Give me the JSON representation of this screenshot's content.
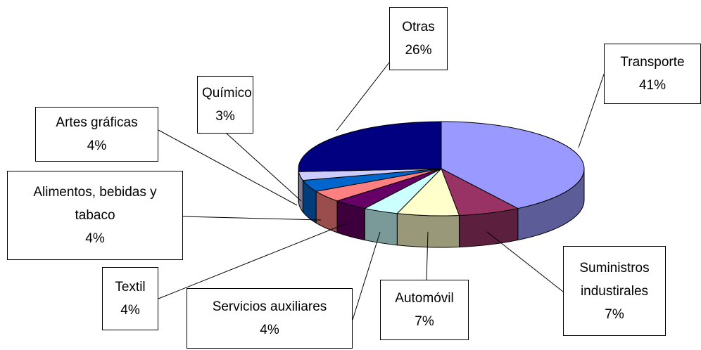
{
  "chart_data": {
    "type": "pie3d",
    "categories": [
      "Transporte",
      "Suministros industirales",
      "Automóvil",
      "Servicios auxiliares",
      "Textil",
      "Alimentos, bebidas y tabaco",
      "Artes gráficas",
      "Químico",
      "Otras"
    ],
    "values": [
      41,
      7,
      7,
      4,
      4,
      4,
      4,
      3,
      26
    ],
    "value_labels": [
      "41%",
      "7%",
      "7%",
      "4%",
      "4%",
      "4%",
      "4%",
      "3%",
      "26%"
    ],
    "colors": [
      "#9999ff",
      "#993366",
      "#ffffcc",
      "#ccffff",
      "#660066",
      "#ff8080",
      "#0066cc",
      "#ccccff",
      "#000080"
    ]
  }
}
